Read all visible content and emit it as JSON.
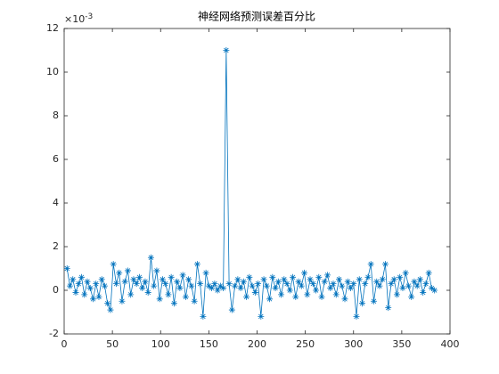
{
  "chart_data": {
    "type": "line",
    "title": "神经网络预测误差百分比",
    "y_scale_base": "×10",
    "y_scale_exponent": "-3",
    "x": [
      3,
      6,
      9,
      12,
      15,
      18,
      21,
      24,
      27,
      30,
      33,
      36,
      39,
      42,
      45,
      48,
      51,
      54,
      57,
      60,
      63,
      66,
      69,
      72,
      75,
      78,
      81,
      84,
      87,
      90,
      93,
      96,
      99,
      102,
      105,
      108,
      111,
      114,
      117,
      120,
      123,
      126,
      129,
      132,
      135,
      138,
      141,
      144,
      147,
      150,
      153,
      156,
      159,
      162,
      165,
      168,
      171,
      174,
      177,
      180,
      183,
      186,
      189,
      192,
      195,
      198,
      201,
      204,
      207,
      210,
      213,
      216,
      219,
      222,
      225,
      228,
      231,
      234,
      237,
      240,
      243,
      246,
      249,
      252,
      255,
      258,
      261,
      264,
      267,
      270,
      273,
      276,
      279,
      282,
      285,
      288,
      291,
      294,
      297,
      300,
      303,
      306,
      309,
      312,
      315,
      318,
      321,
      324,
      327,
      330,
      333,
      336,
      339,
      342,
      345,
      348,
      351,
      354,
      357,
      360,
      363,
      366,
      369,
      372,
      375,
      378,
      381,
      384
    ],
    "series": [
      {
        "color": "#0072bd",
        "marker": "asterisk",
        "values": [
          1.0,
          0.2,
          0.5,
          -0.1,
          0.3,
          0.6,
          -0.2,
          0.4,
          0.1,
          -0.4,
          0.3,
          -0.3,
          0.5,
          0.2,
          -0.6,
          -0.9,
          1.2,
          0.3,
          0.8,
          -0.5,
          0.4,
          0.9,
          -0.2,
          0.5,
          0.3,
          0.6,
          0.1,
          0.4,
          -0.1,
          1.5,
          0.2,
          0.9,
          -0.4,
          0.5,
          0.3,
          -0.2,
          0.6,
          -0.6,
          0.4,
          0.1,
          0.7,
          -0.3,
          0.5,
          0.2,
          -0.5,
          1.2,
          0.3,
          -1.2,
          0.8,
          0.2,
          0.1,
          0.3,
          0.0,
          0.2,
          0.1,
          11.0,
          0.3,
          -0.9,
          0.2,
          0.5,
          0.1,
          0.4,
          -0.3,
          0.6,
          0.2,
          -0.1,
          0.3,
          -1.2,
          0.5,
          0.2,
          -0.4,
          0.6,
          0.1,
          0.4,
          -0.2,
          0.5,
          0.3,
          0.0,
          0.6,
          -0.3,
          0.4,
          0.2,
          0.8,
          -0.2,
          0.5,
          0.3,
          0.0,
          0.6,
          -0.3,
          0.4,
          0.7,
          0.1,
          0.3,
          -0.2,
          0.5,
          0.2,
          -0.4,
          0.4,
          0.1,
          0.3,
          -1.2,
          0.5,
          -0.6,
          0.3,
          0.6,
          1.2,
          -0.5,
          0.4,
          0.2,
          0.5,
          1.2,
          -0.8,
          0.3,
          0.5,
          -0.2,
          0.6,
          0.1,
          0.8,
          0.2,
          -0.3,
          0.4,
          0.2,
          0.5,
          -0.1,
          0.3,
          0.8,
          0.1,
          0.0
        ]
      }
    ],
    "xlim": [
      0,
      400
    ],
    "xticks": [
      0,
      50,
      100,
      150,
      200,
      250,
      300,
      350,
      400
    ],
    "ylim": [
      -2,
      12
    ],
    "yticks": [
      -2,
      0,
      2,
      4,
      6,
      8,
      10,
      12
    ],
    "grid": false
  }
}
